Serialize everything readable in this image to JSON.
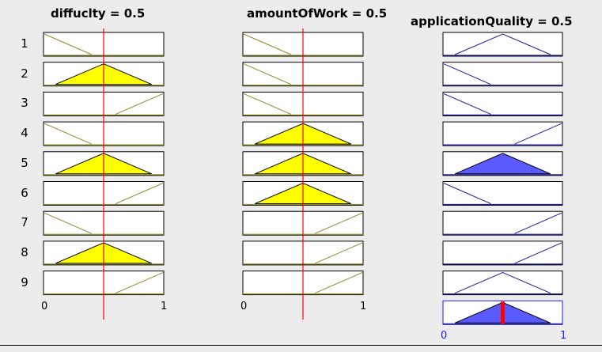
{
  "inputs": [
    {
      "title": "diffuclty = 0.5",
      "value": 0.5,
      "rows": [
        {
          "shape": "z",
          "activation": 0
        },
        {
          "shape": "tri",
          "activation": 1
        },
        {
          "shape": "s",
          "activation": 0
        },
        {
          "shape": "z",
          "activation": 0
        },
        {
          "shape": "tri",
          "activation": 1
        },
        {
          "shape": "s",
          "activation": 0
        },
        {
          "shape": "z",
          "activation": 0
        },
        {
          "shape": "tri",
          "activation": 1
        },
        {
          "shape": "s",
          "activation": 0
        }
      ],
      "ticks": [
        "0",
        "1"
      ]
    },
    {
      "title": "amountOfWork = 0.5",
      "value": 0.5,
      "rows": [
        {
          "shape": "z",
          "activation": 0
        },
        {
          "shape": "z",
          "activation": 0
        },
        {
          "shape": "z",
          "activation": 0
        },
        {
          "shape": "tri",
          "activation": 1
        },
        {
          "shape": "tri",
          "activation": 1
        },
        {
          "shape": "tri",
          "activation": 1
        },
        {
          "shape": "s",
          "activation": 0
        },
        {
          "shape": "s",
          "activation": 0
        },
        {
          "shape": "s",
          "activation": 0
        }
      ],
      "ticks": [
        "0",
        "1"
      ]
    }
  ],
  "output": {
    "title": "applicationQuality = 0.5",
    "value": 0.5,
    "rows": [
      {
        "shape": "tri",
        "activation": 0
      },
      {
        "shape": "z",
        "activation": 0
      },
      {
        "shape": "z",
        "activation": 0
      },
      {
        "shape": "s",
        "activation": 0
      },
      {
        "shape": "tri",
        "activation": 1
      },
      {
        "shape": "z",
        "activation": 0
      },
      {
        "shape": "s",
        "activation": 0
      },
      {
        "shape": "s",
        "activation": 0
      },
      {
        "shape": "tri",
        "activation": 0
      }
    ],
    "aggregate_shape": "tri",
    "ticks": [
      "0",
      "1"
    ]
  },
  "row_labels": [
    "1",
    "2",
    "3",
    "4",
    "5",
    "6",
    "7",
    "8",
    "9"
  ],
  "colors": {
    "input_line": "#8b8b2a",
    "input_fill": "#ffff00",
    "output_line": "#1a1aa0",
    "output_fill": "#5a5aff",
    "indicator": "#ff0000",
    "output_tick": "#1a1aff"
  }
}
